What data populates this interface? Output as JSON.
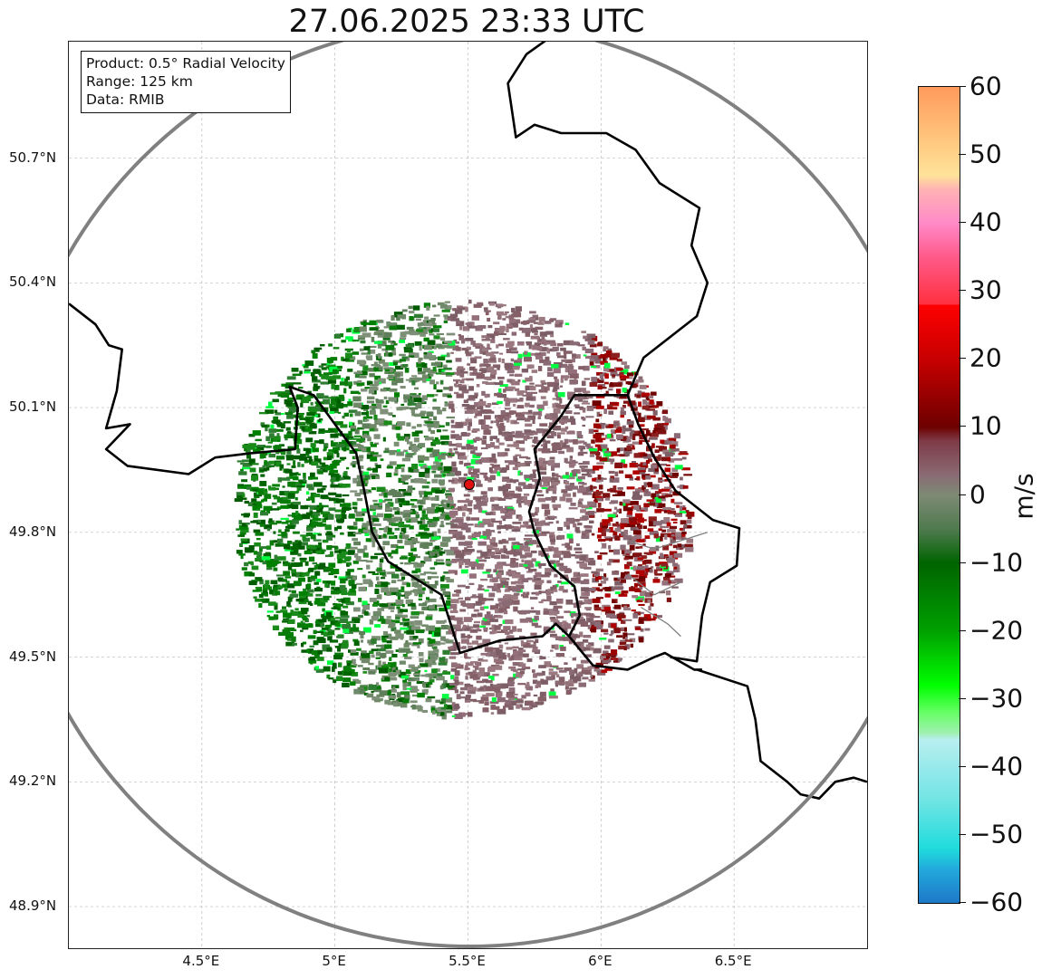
{
  "title": "27.06.2025 23:33 UTC",
  "info": {
    "product": "Product: 0.5° Radial Velocity",
    "range": "Range: 125 km",
    "data_source": "Data: RMIB"
  },
  "map": {
    "lon_range": [
      4.0,
      7.0
    ],
    "lat_range": [
      48.8,
      50.98
    ],
    "radar_site": {
      "lon": 5.505,
      "lat": 49.915
    },
    "lat_ticks": [
      {
        "value": 50.7,
        "label": "50.7°N"
      },
      {
        "value": 50.4,
        "label": "50.4°N"
      },
      {
        "value": 50.1,
        "label": "50.1°N"
      },
      {
        "value": 49.8,
        "label": "49.8°N"
      },
      {
        "value": 49.5,
        "label": "49.5°N"
      },
      {
        "value": 49.2,
        "label": "49.2°N"
      },
      {
        "value": 48.9,
        "label": "48.9°N"
      }
    ],
    "lon_ticks": [
      {
        "value": 4.5,
        "label": "4.5°E"
      },
      {
        "value": 5.0,
        "label": "5°E"
      },
      {
        "value": 5.5,
        "label": "5.5°E"
      },
      {
        "value": 6.0,
        "label": "6°E"
      },
      {
        "value": 6.5,
        "label": "6.5°E"
      }
    ]
  },
  "colorbar": {
    "unit": "m/s",
    "min": -60,
    "max": 60,
    "ticks": [
      {
        "value": 60,
        "label": "60"
      },
      {
        "value": 50,
        "label": "50"
      },
      {
        "value": 40,
        "label": "40"
      },
      {
        "value": 30,
        "label": "30"
      },
      {
        "value": 20,
        "label": "20"
      },
      {
        "value": 10,
        "label": "10"
      },
      {
        "value": 0,
        "label": "0"
      },
      {
        "value": -10,
        "label": "−10"
      },
      {
        "value": -20,
        "label": "−20"
      },
      {
        "value": -30,
        "label": "−30"
      },
      {
        "value": -40,
        "label": "−40"
      },
      {
        "value": -50,
        "label": "−50"
      },
      {
        "value": -60,
        "label": "−60"
      }
    ],
    "gradient_stops": [
      {
        "value": 60,
        "color": "#ff9a5c"
      },
      {
        "value": 53,
        "color": "#ffc27a"
      },
      {
        "value": 47,
        "color": "#ffe39a"
      },
      {
        "value": 45,
        "color": "#ffb3b3"
      },
      {
        "value": 40,
        "color": "#ff8ac8"
      },
      {
        "value": 35,
        "color": "#ff5a8a"
      },
      {
        "value": 28,
        "color": "#ff3040"
      },
      {
        "value": 28,
        "color": "#ff0000"
      },
      {
        "value": 20,
        "color": "#c80000"
      },
      {
        "value": 10,
        "color": "#6e0000"
      },
      {
        "value": 8,
        "color": "#7d3a46"
      },
      {
        "value": 3,
        "color": "#8a6a74"
      },
      {
        "value": 0,
        "color": "#7e8a74"
      },
      {
        "value": -5,
        "color": "#4f7a4f"
      },
      {
        "value": -10,
        "color": "#006400"
      },
      {
        "value": -20,
        "color": "#00a000"
      },
      {
        "value": -28,
        "color": "#00ff00"
      },
      {
        "value": -32,
        "color": "#66ff66"
      },
      {
        "value": -35,
        "color": "#a0f0b0"
      },
      {
        "value": -36,
        "color": "#b8eef0"
      },
      {
        "value": -45,
        "color": "#70e4e4"
      },
      {
        "value": -52,
        "color": "#20dcdc"
      },
      {
        "value": -55,
        "color": "#22aadd"
      },
      {
        "value": -60,
        "color": "#1e78c8"
      }
    ]
  },
  "colors": {
    "range_ring": "#808080",
    "border": "#000000",
    "grid": "#bbbbbb",
    "site_marker": "#e01010"
  }
}
